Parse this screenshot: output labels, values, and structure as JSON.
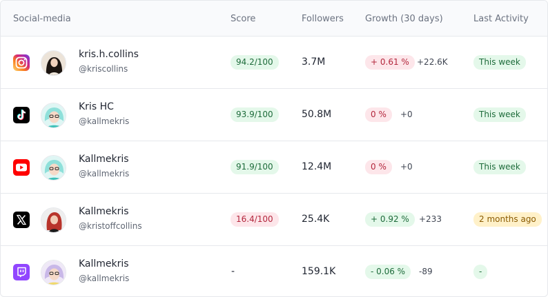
{
  "header": {
    "social_media": "Social-media",
    "score": "Score",
    "followers": "Followers",
    "growth": "Growth (30 days)",
    "last_activity": "Last Activity"
  },
  "rows": [
    {
      "platform_icon": "instagram-icon",
      "name": "kris.h.collins",
      "handle": "@kriscollins",
      "score": "94.2/100",
      "score_status": "green",
      "followers": "3.7M",
      "growth_pct": "+ 0.61 %",
      "growth_status": "red",
      "growth_delta": "+22.6K",
      "activity": "This week",
      "activity_status": "green"
    },
    {
      "platform_icon": "tiktok-icon",
      "name": "Kris HC",
      "handle": "@kallmekris",
      "score": "93.9/100",
      "score_status": "green",
      "followers": "50.8M",
      "growth_pct": "0 %",
      "growth_status": "red",
      "growth_delta": "+0",
      "activity": "This week",
      "activity_status": "green"
    },
    {
      "platform_icon": "youtube-icon",
      "name": "Kallmekris",
      "handle": "@kallmekris",
      "score": "91.9/100",
      "score_status": "green",
      "followers": "12.4M",
      "growth_pct": "0 %",
      "growth_status": "red",
      "growth_delta": "+0",
      "activity": "This week",
      "activity_status": "green"
    },
    {
      "platform_icon": "x-icon",
      "name": "Kallmekris",
      "handle": "@kristoffcollins",
      "score": "16.4/100",
      "score_status": "red",
      "followers": "25.4K",
      "growth_pct": "+ 0.92 %",
      "growth_status": "green",
      "growth_delta": "+233",
      "activity": "2 months ago",
      "activity_status": "amber"
    },
    {
      "platform_icon": "twitch-icon",
      "name": "Kallmekris",
      "handle": "@kallmekris",
      "score": "-",
      "score_status": "none",
      "followers": "159.1K",
      "growth_pct": "- 0.06 %",
      "growth_status": "green",
      "growth_delta": "-89",
      "activity": "-",
      "activity_status": "green"
    }
  ],
  "colors": {
    "instagram": "#d6249f",
    "tiktok": "#000000",
    "youtube": "#ff0000",
    "x": "#000000",
    "twitch": "#9146ff",
    "pill_green_bg": "#e4f8ea",
    "pill_red_bg": "#fde6ea",
    "pill_amber_bg": "#fff1c9"
  }
}
